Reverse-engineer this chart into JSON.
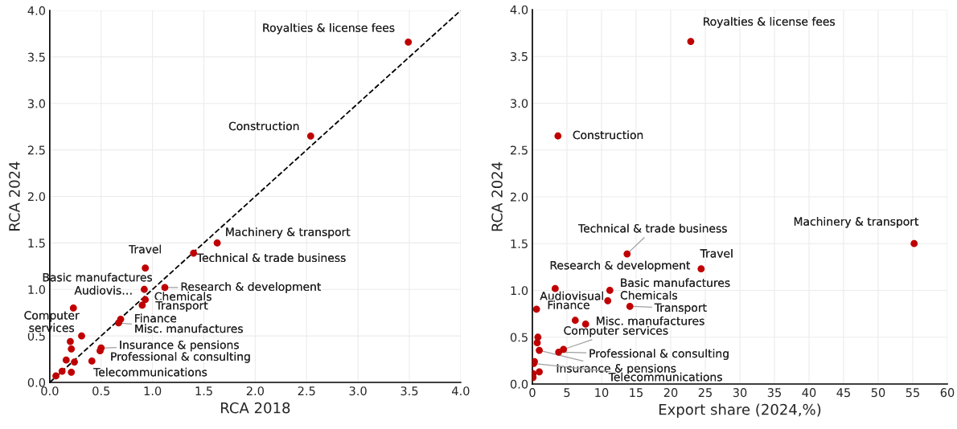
{
  "chart_data": [
    {
      "type": "scatter",
      "xlabel": "RCA 2018",
      "ylabel": "RCA 2024",
      "grid": true,
      "marker": "circle",
      "xlim": [
        0,
        4
      ],
      "ylim": [
        0,
        4
      ],
      "xticks": [
        {
          "value": 0,
          "label": "0.0"
        },
        {
          "value": 0.5,
          "label": "0.5"
        },
        {
          "value": 1,
          "label": "1.0"
        },
        {
          "value": 1.5,
          "label": "1.5"
        },
        {
          "value": 2,
          "label": "2.0"
        },
        {
          "value": 2.5,
          "label": "2.5"
        },
        {
          "value": 3,
          "label": "3.0"
        },
        {
          "value": 3.5,
          "label": "3.5"
        },
        {
          "value": 4,
          "label": "4.0"
        }
      ],
      "yticks": [
        {
          "value": 0,
          "label": "0.0"
        },
        {
          "value": 0.5,
          "label": "0.5"
        },
        {
          "value": 1,
          "label": "1.0"
        },
        {
          "value": 1.5,
          "label": "1.5"
        },
        {
          "value": 2,
          "label": "2.0"
        },
        {
          "value": 2.5,
          "label": "2.5"
        },
        {
          "value": 3,
          "label": "3.0"
        },
        {
          "value": 3.5,
          "label": "3.5"
        },
        {
          "value": 4,
          "label": "4.0"
        }
      ],
      "series": [
        {
          "color": "#c00000",
          "x": [
            3.49,
            2.54,
            1.63,
            1.4,
            0.93,
            0.92,
            1.12,
            0.93,
            0.9,
            0.69,
            0.67,
            0.23,
            0.31,
            0.2,
            0.21,
            0.5,
            0.49,
            0.16,
            0.24,
            0.41,
            0.12,
            0.21,
            0.06
          ],
          "values": [
            3.66,
            2.65,
            1.5,
            1.39,
            1.23,
            1.0,
            1.02,
            0.89,
            0.83,
            0.68,
            0.64,
            0.8,
            0.5,
            0.44,
            0.36,
            0.37,
            0.34,
            0.24,
            0.22,
            0.23,
            0.12,
            0.11,
            0.07
          ]
        },
        {
          "type": "line",
          "color": "#000000",
          "line_style": "dashed",
          "marker": "none",
          "x": [
            0,
            4
          ],
          "values": [
            0,
            4
          ]
        }
      ],
      "annotations": [
        {
          "text": "Royalties & license fees",
          "x": 3.49,
          "y": 3.66
        },
        {
          "text": "Construction",
          "x": 2.54,
          "y": 2.65
        },
        {
          "text": "Machinery & transport",
          "x": 1.63,
          "y": 1.5
        },
        {
          "text": "Technical & trade business",
          "x": 1.4,
          "y": 1.39
        },
        {
          "text": "Travel",
          "x": 0.93,
          "y": 1.23
        },
        {
          "text": "Basic manufactures",
          "x": 0.92,
          "y": 1.0
        },
        {
          "text": "Research & development",
          "x": 1.12,
          "y": 1.02
        },
        {
          "text": "Chemicals",
          "x": 0.93,
          "y": 0.89
        },
        {
          "text": "Transport",
          "x": 0.9,
          "y": 0.83
        },
        {
          "text": "Finance",
          "x": 0.69,
          "y": 0.68
        },
        {
          "text": "Misc. manufactures",
          "x": 0.67,
          "y": 0.64
        },
        {
          "text": "Audiovis…",
          "x": 0.23,
          "y": 0.8
        },
        {
          "text": "Computer\nservices",
          "x": 0.31,
          "y": 0.5
        },
        {
          "text": "Insurance & pensions",
          "x": 0.5,
          "y": 0.37
        },
        {
          "text": "Professional & consulting",
          "x": 0.49,
          "y": 0.34
        },
        {
          "text": "Telecommunications",
          "x": 0.24,
          "y": 0.22
        }
      ]
    },
    {
      "type": "scatter",
      "xlabel": "Export share (2024,%)",
      "ylabel": "RCA 2024",
      "grid": true,
      "marker": "circle",
      "xlim": [
        0,
        60
      ],
      "ylim": [
        0,
        4
      ],
      "xticks": [
        0,
        5,
        10,
        15,
        20,
        25,
        30,
        35,
        40,
        45,
        50,
        55,
        60
      ],
      "yticks": [
        {
          "value": 0,
          "label": "0.0"
        },
        {
          "value": 0.5,
          "label": "0.5"
        },
        {
          "value": 1,
          "label": "1.0"
        },
        {
          "value": 1.5,
          "label": "1.5"
        },
        {
          "value": 2,
          "label": "2.0"
        },
        {
          "value": 2.5,
          "label": "2.5"
        },
        {
          "value": 3,
          "label": "3.0"
        },
        {
          "value": 3.5,
          "label": "3.5"
        },
        {
          "value": 4,
          "label": "4.0"
        }
      ],
      "series": [
        {
          "color": "#c00000",
          "x": [
            22.9,
            3.7,
            55.2,
            13.7,
            24.4,
            3.3,
            11.2,
            10.9,
            14.1,
            0.6,
            6.2,
            7.7,
            0.8,
            0.7,
            1.0,
            4.5,
            3.8,
            0.3,
            0.2,
            1.0,
            0.1,
            0.1
          ],
          "values": [
            3.66,
            2.65,
            1.5,
            1.39,
            1.23,
            1.02,
            1.0,
            0.89,
            0.83,
            0.8,
            0.68,
            0.64,
            0.5,
            0.44,
            0.36,
            0.37,
            0.34,
            0.24,
            0.22,
            0.13,
            0.11,
            0.07
          ]
        }
      ],
      "annotations": [
        {
          "text": "Royalties & license fees",
          "x": 22.9,
          "y": 3.66
        },
        {
          "text": "Construction",
          "x": 3.7,
          "y": 2.65
        },
        {
          "text": "Machinery & transport",
          "x": 55.2,
          "y": 1.5
        },
        {
          "text": "Technical & trade business",
          "x": 13.7,
          "y": 1.39
        },
        {
          "text": "Travel",
          "x": 24.4,
          "y": 1.23
        },
        {
          "text": "Research & development",
          "x": 3.3,
          "y": 1.02
        },
        {
          "text": "Basic manufactures",
          "x": 11.2,
          "y": 1.0
        },
        {
          "text": "Chemicals",
          "x": 10.9,
          "y": 0.89
        },
        {
          "text": "Transport",
          "x": 14.1,
          "y": 0.83
        },
        {
          "text": "Audiovisual",
          "x": 0.6,
          "y": 0.8
        },
        {
          "text": "Finance",
          "x": 6.2,
          "y": 0.68
        },
        {
          "text": "Misc. manufactures",
          "x": 7.7,
          "y": 0.64
        },
        {
          "text": "Computer services",
          "x": 4.5,
          "y": 0.37
        },
        {
          "text": "Professional & consulting",
          "x": 3.8,
          "y": 0.34
        },
        {
          "text": "Insurance & pensions",
          "x": 1.0,
          "y": 0.36
        },
        {
          "text": "Telecommunications",
          "x": 0.2,
          "y": 0.22
        }
      ]
    }
  ]
}
